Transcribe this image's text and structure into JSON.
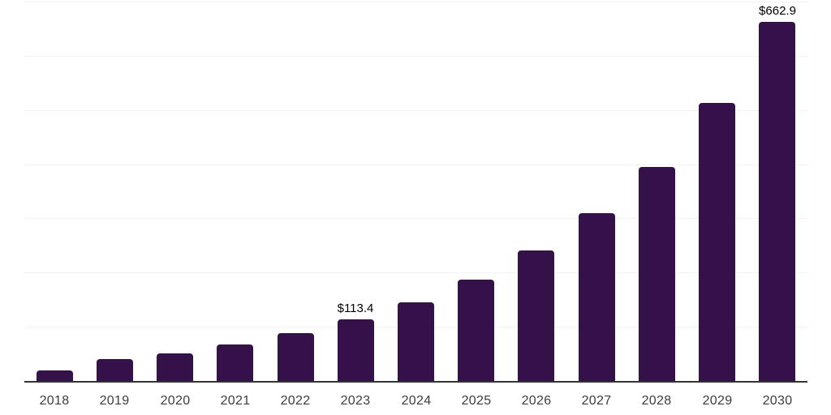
{
  "chart_data": {
    "type": "bar",
    "title": "",
    "xlabel": "",
    "ylabel": "",
    "ylim": [
      0,
      700
    ],
    "gridline_step": 100,
    "grid": "horizontal-only",
    "legend_position": "none",
    "categories": [
      "2018",
      "2019",
      "2020",
      "2021",
      "2022",
      "2023",
      "2024",
      "2025",
      "2026",
      "2027",
      "2028",
      "2029",
      "2030"
    ],
    "values": [
      19.4,
      40.3,
      50.8,
      67.2,
      88.1,
      113.4,
      144.9,
      186.6,
      240.3,
      309.0,
      395.6,
      513.5,
      662.9
    ],
    "data_labels": [
      {
        "category": "2023",
        "text": "$113.4"
      },
      {
        "category": "2030",
        "text": "$662.9"
      }
    ],
    "colors": {
      "bar": "#341249",
      "background": "#ffffff",
      "gridline": "#f2f2f2",
      "axis_line": "#333333",
      "tick_label": "#3d3d3d",
      "data_label": "#000000"
    }
  }
}
